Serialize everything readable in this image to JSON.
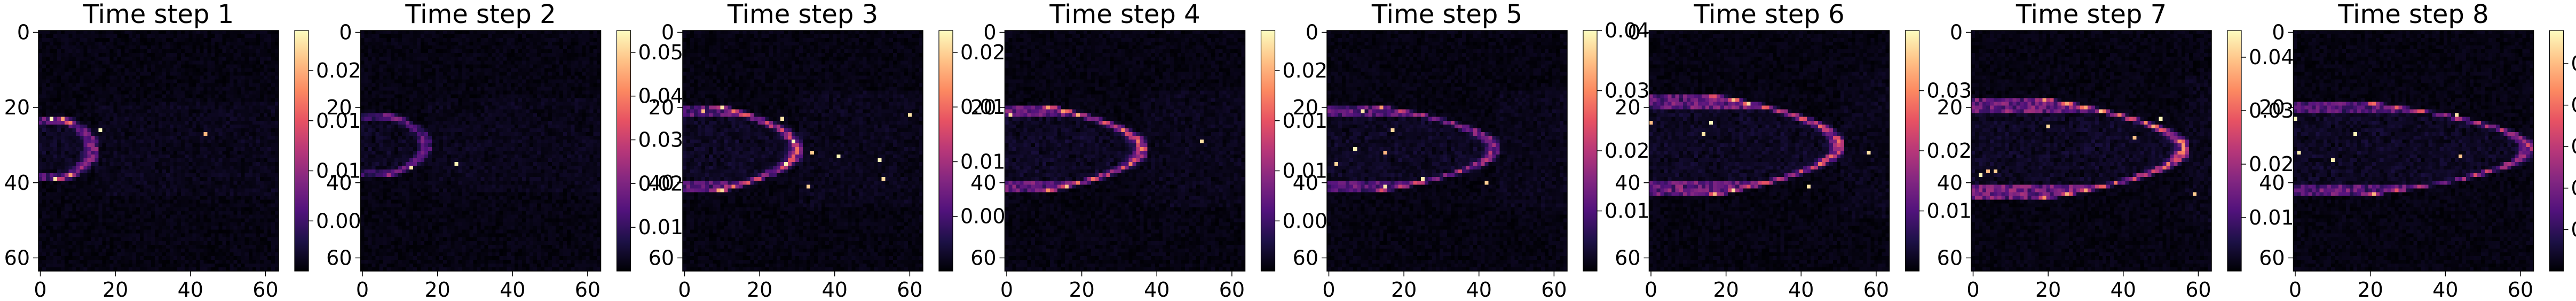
{
  "colors": {
    "colormap": [
      "#000004",
      "#1d1147",
      "#51127c",
      "#822681",
      "#b73779",
      "#e75263",
      "#fc8961",
      "#fec287",
      "#fcfdbf"
    ]
  },
  "chart_data": [
    {
      "type": "heatmap",
      "title": "Time step 1",
      "grid_size": 64,
      "x_ticks": [
        "0",
        "20",
        "40",
        "60"
      ],
      "y_ticks": [
        "0",
        "20",
        "40",
        "60"
      ],
      "vmin": 0,
      "vmax": 0.024,
      "colorbar_ticks": [
        {
          "value": 0.005,
          "label": "0.005"
        },
        {
          "value": 0.01,
          "label": "0.010"
        },
        {
          "value": 0.015,
          "label": "0.015"
        },
        {
          "value": 0.02,
          "label": "0.020"
        }
      ],
      "front": {
        "head_x": 14,
        "center_y": 31,
        "radius_y": 8,
        "intensity": 0.45
      }
    },
    {
      "type": "heatmap",
      "title": "Time step 2",
      "grid_size": 64,
      "x_ticks": [
        "0",
        "20",
        "40",
        "60"
      ],
      "y_ticks": [
        "0",
        "20",
        "40",
        "60"
      ],
      "vmin": 0,
      "vmax": 0.055,
      "colorbar_ticks": [
        {
          "value": 0.01,
          "label": "0.01"
        },
        {
          "value": 0.02,
          "label": "0.02"
        },
        {
          "value": 0.03,
          "label": "0.03"
        },
        {
          "value": 0.04,
          "label": "0.04"
        },
        {
          "value": 0.05,
          "label": "0.05"
        }
      ],
      "front": {
        "head_x": 17,
        "center_y": 30,
        "radius_y": 8,
        "intensity": 0.3
      }
    },
    {
      "type": "heatmap",
      "title": "Time step 3",
      "grid_size": 64,
      "x_ticks": [
        "0",
        "20",
        "40",
        "60"
      ],
      "y_ticks": [
        "0",
        "20",
        "40",
        "60"
      ],
      "vmin": 0,
      "vmax": 0.022,
      "colorbar_ticks": [
        {
          "value": 0.005,
          "label": "0.005"
        },
        {
          "value": 0.01,
          "label": "0.010"
        },
        {
          "value": 0.015,
          "label": "0.015"
        },
        {
          "value": 0.02,
          "label": "0.020"
        }
      ],
      "front": {
        "head_x": 30,
        "center_y": 31,
        "radius_y": 10,
        "intensity": 0.55
      }
    },
    {
      "type": "heatmap",
      "title": "Time step 4",
      "grid_size": 64,
      "x_ticks": [
        "0",
        "20",
        "40",
        "60"
      ],
      "y_ticks": [
        "0",
        "20",
        "40",
        "60"
      ],
      "vmin": 0,
      "vmax": 0.024,
      "colorbar_ticks": [
        {
          "value": 0.005,
          "label": "0.005"
        },
        {
          "value": 0.01,
          "label": "0.010"
        },
        {
          "value": 0.015,
          "label": "0.015"
        },
        {
          "value": 0.02,
          "label": "0.020"
        }
      ],
      "front": {
        "head_x": 36,
        "center_y": 31,
        "radius_y": 10,
        "intensity": 0.6
      }
    },
    {
      "type": "heatmap",
      "title": "Time step 5",
      "grid_size": 64,
      "x_ticks": [
        "0",
        "20",
        "40",
        "60"
      ],
      "y_ticks": [
        "0",
        "20",
        "40",
        "60"
      ],
      "vmin": 0,
      "vmax": 0.04,
      "colorbar_ticks": [
        {
          "value": 0.01,
          "label": "0.01"
        },
        {
          "value": 0.02,
          "label": "0.02"
        },
        {
          "value": 0.03,
          "label": "0.03"
        },
        {
          "value": 0.04,
          "label": "0.04"
        }
      ],
      "front": {
        "head_x": 44,
        "center_y": 31,
        "radius_y": 10,
        "intensity": 0.5
      }
    },
    {
      "type": "heatmap",
      "title": "Time step 6",
      "grid_size": 64,
      "x_ticks": [
        "0",
        "20",
        "40",
        "60"
      ],
      "y_ticks": [
        "0",
        "20",
        "40",
        "60"
      ],
      "vmin": 0,
      "vmax": 0.04,
      "colorbar_ticks": [
        {
          "value": 0.01,
          "label": "0.01"
        },
        {
          "value": 0.02,
          "label": "0.02"
        },
        {
          "value": 0.03,
          "label": "0.03"
        }
      ],
      "front": {
        "head_x": 50,
        "center_y": 30,
        "radius_y": 12,
        "intensity": 0.6
      }
    },
    {
      "type": "heatmap",
      "title": "Time step 7",
      "grid_size": 64,
      "x_ticks": [
        "0",
        "20",
        "40",
        "60"
      ],
      "y_ticks": [
        "0",
        "20",
        "40",
        "60"
      ],
      "vmin": 0,
      "vmax": 0.045,
      "colorbar_ticks": [
        {
          "value": 0.01,
          "label": "0.01"
        },
        {
          "value": 0.02,
          "label": "0.02"
        },
        {
          "value": 0.03,
          "label": "0.03"
        },
        {
          "value": 0.04,
          "label": "0.04"
        }
      ],
      "front": {
        "head_x": 56,
        "center_y": 31,
        "radius_y": 12,
        "intensity": 0.65
      }
    },
    {
      "type": "heatmap",
      "title": "Time step 8",
      "grid_size": 64,
      "x_ticks": [
        "0",
        "20",
        "40",
        "60"
      ],
      "y_ticks": [
        "0",
        "20",
        "40",
        "60"
      ],
      "vmin": 0,
      "vmax": 0.058,
      "colorbar_ticks": [
        {
          "value": 0.01,
          "label": "0.01"
        },
        {
          "value": 0.02,
          "label": "0.02"
        },
        {
          "value": 0.03,
          "label": "0.03"
        },
        {
          "value": 0.04,
          "label": "0.04"
        },
        {
          "value": 0.05,
          "label": "0.05"
        }
      ],
      "front": {
        "head_x": 62,
        "center_y": 31,
        "radius_y": 11,
        "intensity": 0.55
      }
    }
  ]
}
